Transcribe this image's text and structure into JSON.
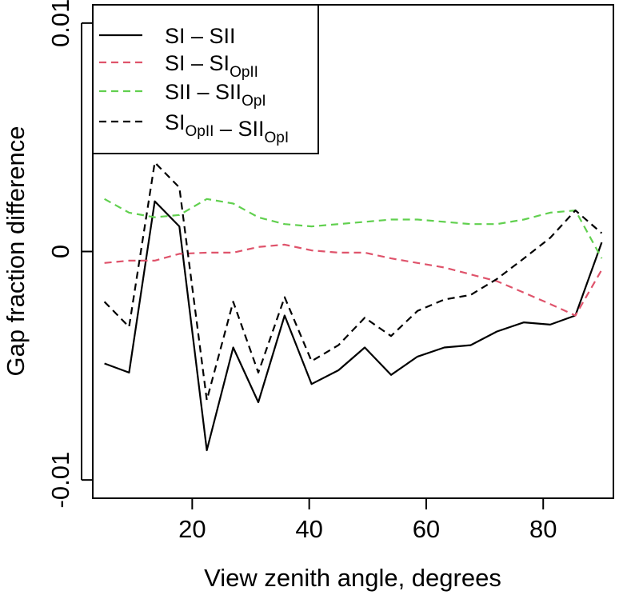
{
  "chart_data": {
    "type": "line",
    "xlabel": "View zenith angle, degrees",
    "ylabel": "Gap fraction difference",
    "xlim": [
      3,
      92
    ],
    "ylim": [
      -0.0108,
      0.0108
    ],
    "x_ticks": [
      20,
      40,
      60,
      80
    ],
    "x_tick_labels": [
      "20",
      "40",
      "60",
      "80"
    ],
    "y_ticks": [
      -0.01,
      0,
      0.01
    ],
    "y_tick_labels": [
      "-0.01",
      "0",
      "0.01"
    ],
    "grid": false,
    "legend_position": "top-left",
    "x": [
      5,
      9.2,
      13.6,
      17.8,
      22.5,
      27,
      31.3,
      35.8,
      40.4,
      45,
      49.5,
      54,
      58.5,
      63.1,
      67.6,
      72.1,
      76.7,
      81.2,
      85.5,
      90
    ],
    "series": [
      {
        "name_parts": [
          [
            "SI",
            ""
          ],
          [
            " – ",
            ""
          ],
          [
            "SII",
            ""
          ]
        ],
        "color": "#000000",
        "dash": "solid",
        "values": [
          -0.0049,
          -0.0053,
          0.0022,
          0.0011,
          -0.0087,
          -0.0042,
          -0.0066,
          -0.0028,
          -0.0058,
          -0.0052,
          -0.0042,
          -0.0054,
          -0.0046,
          -0.0042,
          -0.0041,
          -0.0035,
          -0.0031,
          -0.0032,
          -0.0028,
          0.0004
        ]
      },
      {
        "name_parts": [
          [
            "SI",
            ""
          ],
          [
            " – ",
            ""
          ],
          [
            "SI",
            "OpII"
          ]
        ],
        "color": "#DF536B",
        "dash": "dashed",
        "values": [
          -0.0005,
          -0.0004,
          -0.0004,
          -0.0001,
          -5e-05,
          -5e-05,
          0.0002,
          0.0003,
          5e-05,
          -5e-05,
          -5e-05,
          -0.0003,
          -0.0005,
          -0.0007,
          -0.001,
          -0.0013,
          -0.0018,
          -0.0023,
          -0.0028,
          -0.0008
        ]
      },
      {
        "name_parts": [
          [
            "SII",
            ""
          ],
          [
            " – ",
            ""
          ],
          [
            "SII",
            "OpI"
          ]
        ],
        "color": "#61D04F",
        "dash": "dashed",
        "values": [
          0.0023,
          0.0017,
          0.0015,
          0.0016,
          0.0023,
          0.0021,
          0.0015,
          0.0012,
          0.0011,
          0.0012,
          0.0013,
          0.0014,
          0.0014,
          0.0013,
          0.0012,
          0.0012,
          0.0014,
          0.0017,
          0.0018,
          -0.0003
        ]
      },
      {
        "name_parts": [
          [
            "SI",
            "OpII"
          ],
          [
            " – ",
            ""
          ],
          [
            "SII",
            "OpI"
          ]
        ],
        "color": "#000000",
        "dash": "dashed",
        "values": [
          -0.0022,
          -0.0033,
          0.0039,
          0.0028,
          -0.0065,
          -0.0022,
          -0.0053,
          -0.002,
          -0.0048,
          -0.0041,
          -0.0029,
          -0.0037,
          -0.0026,
          -0.0021,
          -0.0019,
          -0.0012,
          -0.0003,
          0.0006,
          0.0018,
          0.0008
        ]
      }
    ]
  }
}
